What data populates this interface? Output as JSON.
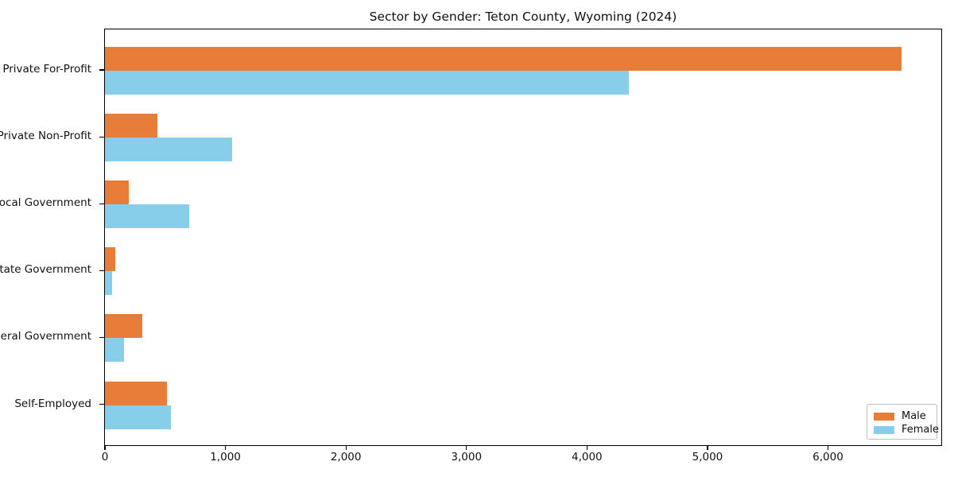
{
  "chart_data": {
    "type": "bar",
    "orientation": "horizontal",
    "title": "Sector by Gender: Teton County, Wyoming (2024)",
    "categories": [
      "Private For-Profit",
      "Private Non-Profit",
      "Local Government",
      "State Government",
      "Federal Government",
      "Self-Employed"
    ],
    "series": [
      {
        "name": "Male",
        "color": "#e87d3a",
        "values": [
          6610,
          435,
          200,
          85,
          310,
          515
        ]
      },
      {
        "name": "Female",
        "color": "#87ceeb",
        "values": [
          4350,
          1055,
          700,
          60,
          160,
          550
        ]
      }
    ],
    "xlim": [
      0,
      6940
    ],
    "xticks": [
      0,
      1000,
      2000,
      3000,
      4000,
      5000,
      6000
    ],
    "xtick_labels": [
      "0",
      "1,000",
      "2,000",
      "3,000",
      "4,000",
      "5,000",
      "6,000"
    ],
    "xlabel": "",
    "ylabel": "",
    "grid": false,
    "legend_position": "lower right"
  }
}
